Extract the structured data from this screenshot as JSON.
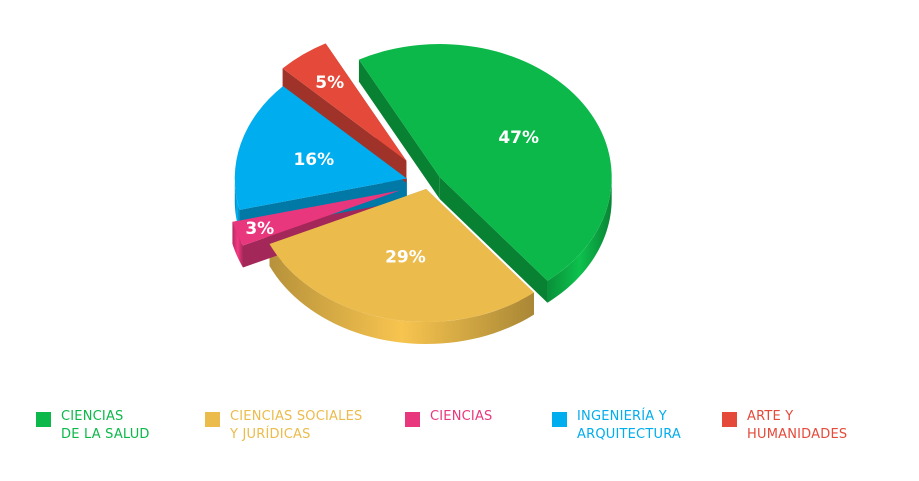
{
  "chart_data": {
    "type": "pie",
    "title": "",
    "style": "3d-exploded",
    "legend_position": "bottom",
    "slices": [
      {
        "label": "CIENCIAS\nDE LA SALUD",
        "value": 47,
        "value_label": "47%",
        "color": "#0cb849"
      },
      {
        "label": "CIENCIAS SOCIALES\nY JURÍDICAS",
        "value": 29,
        "value_label": "29%",
        "color": "#ebbb4b"
      },
      {
        "label": "CIENCIAS",
        "value": 3,
        "value_label": "3%",
        "color": "#e9377d"
      },
      {
        "label": "INGENIERÍA Y\nARQUITECTURA",
        "value": 16,
        "value_label": "16%",
        "color": "#00adee"
      },
      {
        "label": "ARTE Y\nHUMANIDADES",
        "value": 5,
        "value_label": "5%",
        "color": "#e5493a"
      }
    ]
  }
}
